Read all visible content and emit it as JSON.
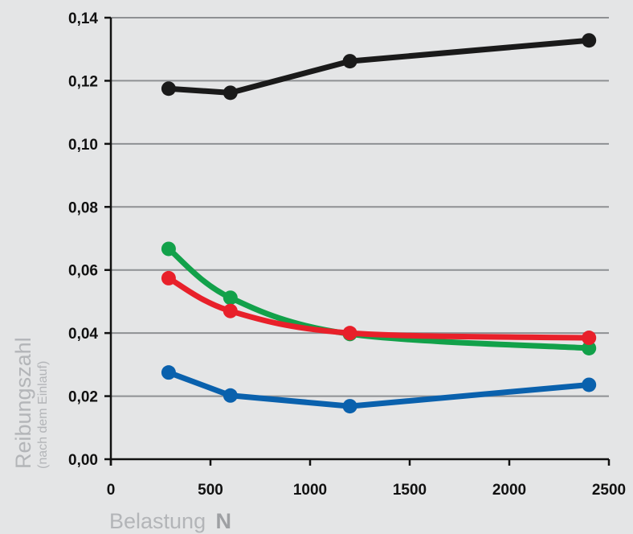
{
  "chart_data": {
    "type": "line",
    "title": "",
    "xlabel": "Belastung",
    "xlabel_unit": "N",
    "ylabel": "Reibungszahl",
    "ylabel_sub": "(nach dem Einlauf)",
    "xlim": [
      0,
      2500
    ],
    "ylim": [
      0,
      0.14
    ],
    "x_ticks": [
      0,
      500,
      1000,
      1500,
      2000,
      2500
    ],
    "x_tick_labels": [
      "0",
      "500",
      "1000",
      "1500",
      "2000",
      "2500"
    ],
    "y_ticks": [
      0,
      0.02,
      0.04,
      0.06,
      0.08,
      0.1,
      0.12,
      0.14
    ],
    "y_tick_labels": [
      "0,00",
      "0,02",
      "0,04",
      "0,06",
      "0,08",
      "0,10",
      "0,12",
      "0,14"
    ],
    "grid": "horizontal",
    "x": [
      290,
      600,
      1200,
      2400
    ],
    "series": [
      {
        "color": "#1a1a1a",
        "values": [
          0.1175,
          0.1162,
          0.1262,
          0.1328
        ]
      },
      {
        "color": "#12a14a",
        "values": [
          0.0667,
          0.0512,
          0.0397,
          0.0352
        ]
      },
      {
        "color": "#e8202a",
        "values": [
          0.0574,
          0.047,
          0.04,
          0.0385
        ]
      },
      {
        "color": "#0a61ad",
        "values": [
          0.0275,
          0.0202,
          0.0168,
          0.0236
        ]
      }
    ],
    "smooth": [
      false,
      true,
      true,
      false
    ]
  }
}
